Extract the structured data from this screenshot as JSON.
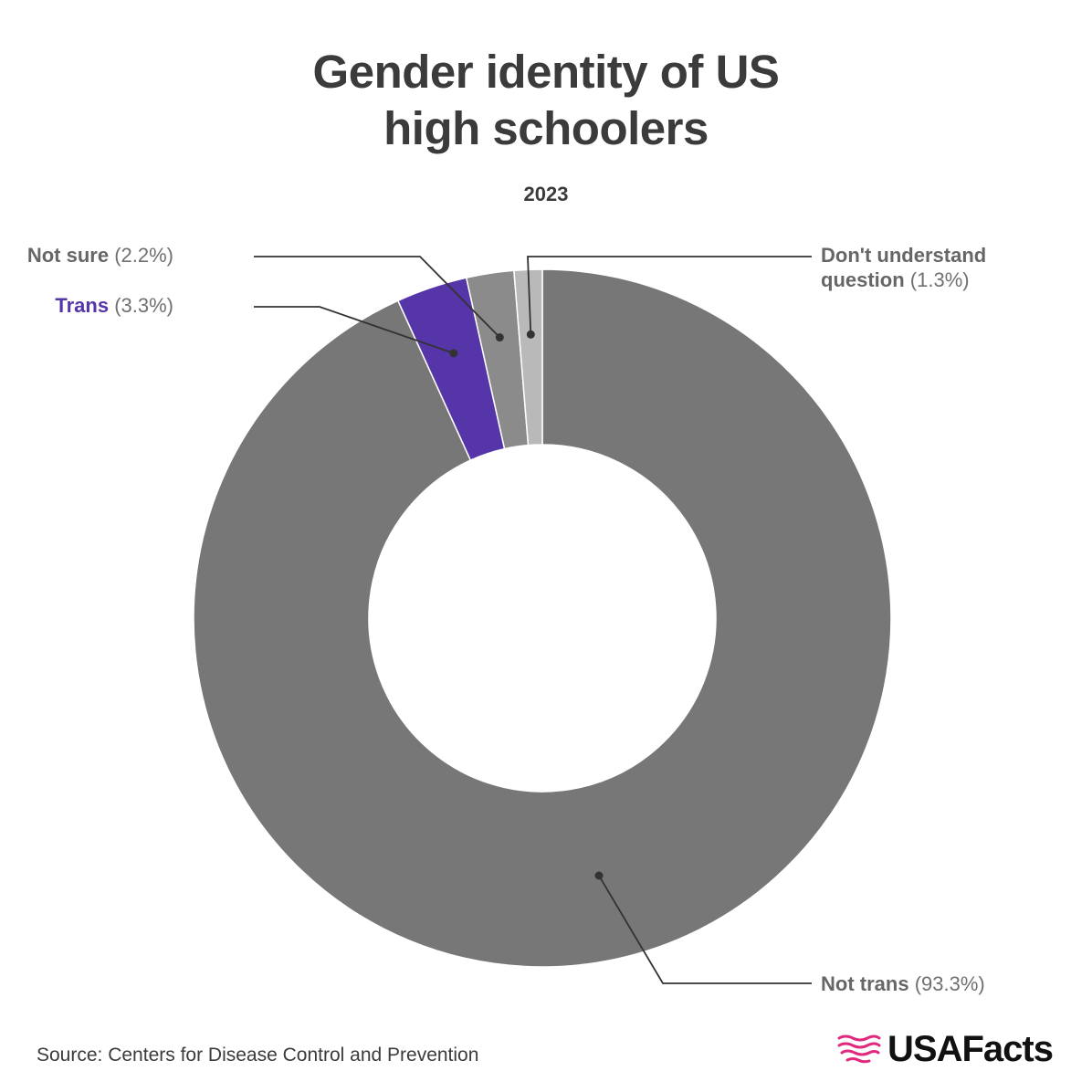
{
  "chart_data": {
    "type": "pie",
    "title_lines": [
      "Gender identity of US",
      "high schoolers"
    ],
    "subtitle": "2023",
    "slices": [
      {
        "name": "Not trans",
        "pct_label": "(93.3%)",
        "value": 93.3,
        "color": "#777777",
        "label_color": "#666666"
      },
      {
        "name": "Trans",
        "pct_label": "(3.3%)",
        "value": 3.3,
        "color": "#5535a8",
        "label_color": "#5535a8"
      },
      {
        "name": "Not sure",
        "pct_label": "(2.2%)",
        "value": 2.2,
        "color": "#8b8b8b",
        "label_color": "#666666"
      },
      {
        "name": "Don't understand",
        "name_line2": "question",
        "pct_label": "(1.3%)",
        "value": 1.3,
        "color": "#b9b9b9",
        "label_color": "#666666"
      }
    ],
    "donut": true
  },
  "footer": {
    "source": "Source: Centers for Disease Control and Prevention",
    "logo_text": "USAFacts",
    "logo_color": "#e0287d"
  }
}
